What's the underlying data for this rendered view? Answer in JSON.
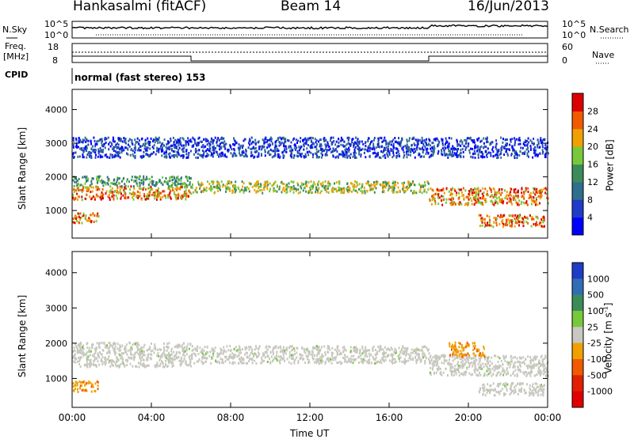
{
  "header": {
    "station": "Hankasalmi (fitACF)",
    "beam": "Beam 14",
    "date": "16/Jun/2013"
  },
  "panels": {
    "nsky_label": "N.Sky",
    "nsky_ticks": [
      "10^5",
      "10^0"
    ],
    "nsearch_label": "N.Search",
    "nsearch_ticks": [
      "10^5",
      "10^0"
    ],
    "freq_label_line1": "Freq.",
    "freq_label_line2": "[MHz]",
    "freq_ticks": [
      "18",
      "8"
    ],
    "nave_label": "Nave",
    "nave_ticks": [
      "60",
      "0"
    ],
    "cpid_label": "CPID",
    "cpid_text": "normal (fast stereo) 153"
  },
  "chart_data": [
    {
      "type": "heatmap",
      "panel": "power",
      "ylabel": "Slant Range [km]",
      "xlabel": "",
      "yticks": [
        1000,
        2000,
        3000,
        4000
      ],
      "ylim": [
        180,
        4600
      ],
      "xlim_hours": [
        0,
        24
      ],
      "colorbar": {
        "label": "Power [dB]",
        "ticks": [
          "4",
          "8",
          "12",
          "16",
          "20",
          "24",
          "28"
        ],
        "colors": [
          "#0000ff",
          "#1e3cc8",
          "#2f6e8c",
          "#3c8c5a",
          "#78c83c",
          "#f0a000",
          "#f05a00",
          "#dc0000"
        ]
      },
      "bands": [
        {
          "t0": 0.0,
          "t1": 6.0,
          "r0": 1350,
          "r1": 1750,
          "level": "high"
        },
        {
          "t0": 0.0,
          "t1": 6.0,
          "r0": 1750,
          "r1": 2050,
          "level": "medium"
        },
        {
          "t0": 6.0,
          "t1": 18.0,
          "r0": 1550,
          "r1": 1900,
          "level": "medium-high"
        },
        {
          "t0": 18.0,
          "t1": 24.0,
          "r0": 1200,
          "r1": 1700,
          "level": "high"
        },
        {
          "t0": 0.0,
          "t1": 1.3,
          "r0": 650,
          "r1": 950,
          "level": "high"
        },
        {
          "t0": 20.5,
          "t1": 23.8,
          "r0": 550,
          "r1": 900,
          "level": "high"
        },
        {
          "t0": 0.0,
          "t1": 24.0,
          "r0": 2600,
          "r1": 3200,
          "level": "low"
        }
      ]
    },
    {
      "type": "heatmap",
      "panel": "velocity",
      "ylabel": "Slant Range [km]",
      "xlabel": "Time UT",
      "yticks": [
        1000,
        2000,
        3000,
        4000
      ],
      "ylim": [
        180,
        4600
      ],
      "xlim_hours": [
        0,
        24
      ],
      "xticks": [
        "00:00",
        "04:00",
        "08:00",
        "12:00",
        "16:00",
        "20:00",
        "00:00"
      ],
      "colorbar": {
        "label": "Velocity [m s",
        "label_sup": "-1",
        "label_end": "]",
        "ticks": [
          "1000",
          "500",
          "100",
          "25",
          "-25",
          "-100",
          "-500",
          "-1000"
        ],
        "colors": [
          "#1e3cc8",
          "#2f6eb4",
          "#3c8c5a",
          "#78c83c",
          "#c8c8c0",
          "#f0a000",
          "#f05a00",
          "#e02000",
          "#e00000"
        ]
      },
      "bands": [
        {
          "t0": 0.0,
          "t1": 6.0,
          "r0": 1350,
          "r1": 2050,
          "level": "ground-scatter"
        },
        {
          "t0": 6.0,
          "t1": 18.0,
          "r0": 1450,
          "r1": 1950,
          "level": "ground-scatter"
        },
        {
          "t0": 18.0,
          "t1": 24.0,
          "r0": 1100,
          "r1": 1700,
          "level": "ground-scatter"
        },
        {
          "t0": 0.0,
          "t1": 1.3,
          "r0": 650,
          "r1": 950,
          "level": "-100"
        },
        {
          "t0": 19.0,
          "t1": 20.8,
          "r0": 1650,
          "r1": 2050,
          "level": "-100"
        },
        {
          "t0": 20.5,
          "t1": 23.8,
          "r0": 550,
          "r1": 900,
          "level": "ground-scatter"
        }
      ]
    }
  ]
}
